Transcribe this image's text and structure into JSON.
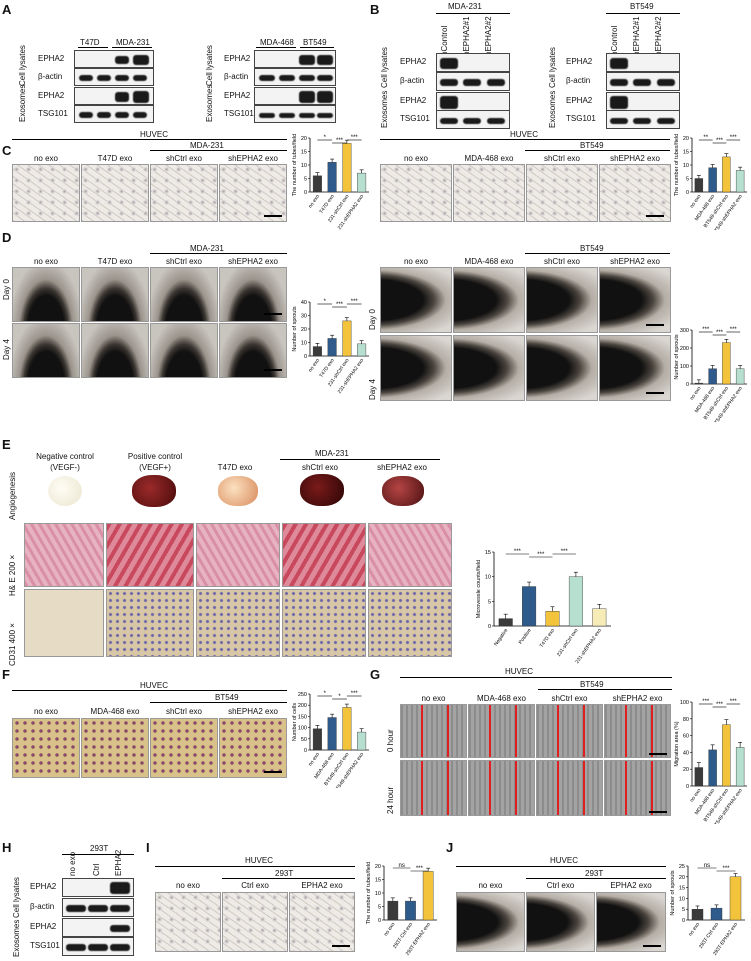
{
  "panels": {
    "A": "A",
    "B": "B",
    "C": "C",
    "D": "D",
    "E": "E",
    "F": "F",
    "G": "G",
    "H": "H",
    "I": "I",
    "J": "J"
  },
  "A": {
    "blot1_cols": [
      "T47D",
      "MDA-231"
    ],
    "blot2_cols": [
      "MDA-468",
      "BT549"
    ],
    "rows": [
      "EPHA2",
      "β-actin",
      "EPHA2",
      "TSG101"
    ],
    "group_cell": "Cell lysates",
    "group_exo": "Exosomes"
  },
  "B": {
    "line1": "MDA-231",
    "line2": "BT549",
    "lanes1": [
      "shControl",
      "shEPHA2#1",
      "shEPHA2#2"
    ],
    "lanes2": [
      "shControl",
      "shEPHA2#1",
      "shEPHA2#2"
    ],
    "rows": [
      "EPHA2",
      "β-actin",
      "EPHA2",
      "TSG101"
    ],
    "group_cell": "Cell lysates",
    "group_exo": "Exosomes"
  },
  "C": {
    "header_left": "HUVEC",
    "cell_left": "MDA-231",
    "cols_left": [
      "no exo",
      "T47D exo",
      "shCtrl exo",
      "shEPHA2 exo"
    ],
    "header_right": "HUVEC",
    "cell_right": "BT549",
    "cols_right": [
      "no exo",
      "MDA-468 exo",
      "shCtrl exo",
      "shEPHA2 exo"
    ]
  },
  "D": {
    "cell_left": "MDA-231",
    "cols_left": [
      "no exo",
      "T47D exo",
      "shCtrl exo",
      "shEPHA2 exo"
    ],
    "cell_right": "BT549",
    "cols_right": [
      "no exo",
      "MDA-468 exo",
      "shCtrl exo",
      "shEPHA2 exo"
    ],
    "rows": [
      "Day 0",
      "Day 4"
    ]
  },
  "E": {
    "cell": "MDA-231",
    "cols": [
      "Negative control",
      "(VEGF-)",
      "Positive control",
      "(VEGF+)",
      "T47D exo",
      "shCtrl exo",
      "shEPHA2 exo"
    ],
    "rows": [
      "Angiogenesis",
      "H& E 200 ×",
      "CD31 400 ×"
    ]
  },
  "F": {
    "header": "HUVEC",
    "cell": "BT549",
    "cols": [
      "no exo",
      "MDA-468 exo",
      "shCtrl exo",
      "shEPHA2 exo"
    ]
  },
  "G": {
    "header": "HUVEC",
    "cell": "BT549",
    "cols": [
      "no exo",
      "MDA-468 exo",
      "shCtrl exo",
      "shEPHA2 exo"
    ],
    "rows": [
      "0 hour",
      "24 hour"
    ]
  },
  "H": {
    "cell": "293T",
    "lanes": [
      "no exo",
      "Ctrl",
      "EPHA2"
    ],
    "rows": [
      "EPHA2",
      "β-actin",
      "EPHA2",
      "TSG101"
    ],
    "group_cell": "Cell lysates",
    "group_exo": "Exosomes"
  },
  "I": {
    "header": "HUVEC",
    "cell": "293T",
    "cols": [
      "no exo",
      "Ctrl exo",
      "EPHA2 exo"
    ]
  },
  "J": {
    "header": "HUVEC",
    "cell": "293T",
    "cols": [
      "no exo",
      "Ctrl exo",
      "EPHA2 exo"
    ]
  },
  "colors": {
    "dark": "#3a3a3a",
    "blue": "#2e5a8c",
    "yellow": "#f3c33c",
    "green": "#b6dfd0",
    "lightyellow": "#f7ecb8"
  },
  "chart_data": [
    {
      "id": "C1",
      "type": "bar",
      "ylabel": "The number of tubes/field",
      "categories": [
        "no exo",
        "T47D exo",
        "231-shCtrl exo",
        "231-shEPHA2 exo"
      ],
      "values": [
        6,
        11,
        18,
        7
      ],
      "ylim": [
        0,
        20
      ],
      "ticks": [
        0,
        5,
        10,
        15,
        20
      ],
      "sig": [
        "*",
        "***",
        "***"
      ]
    },
    {
      "id": "C2",
      "type": "bar",
      "ylabel": "The number of tubes/field",
      "categories": [
        "no exo",
        "MDA-468 exo",
        "BT549-shCtrl exo",
        "BT549-shEPHA2 exo"
      ],
      "values": [
        5,
        9,
        13,
        8
      ],
      "ylim": [
        0,
        20
      ],
      "ticks": [
        0,
        5,
        10,
        15,
        20
      ],
      "sig": [
        "**",
        "***",
        "***"
      ]
    },
    {
      "id": "D1",
      "type": "bar",
      "ylabel": "Number of sprouts",
      "categories": [
        "no exo",
        "T47D exo",
        "231-shCtrl exo",
        "231-shEPHA2 exo"
      ],
      "values": [
        7,
        13,
        26,
        9
      ],
      "ylim": [
        0,
        40
      ],
      "ticks": [
        0,
        10,
        20,
        30,
        40
      ],
      "sig": [
        "*",
        "***",
        "***"
      ]
    },
    {
      "id": "D2",
      "type": "bar",
      "ylabel": "Number of sprouts",
      "categories": [
        "no exo",
        "MDA-468 exo",
        "BT549-shCtrl exo",
        "BT549-shEPHA2 exo"
      ],
      "values": [
        5,
        85,
        230,
        85
      ],
      "ylim": [
        0,
        300
      ],
      "ticks": [
        0,
        100,
        200,
        300
      ],
      "sig": [
        "***",
        "***",
        "***"
      ]
    },
    {
      "id": "E1",
      "type": "bar",
      "ylabel": "Microvessle counts/field",
      "categories": [
        "Negative",
        "Positive",
        "T47D exo",
        "231-shCtrl exo",
        "231-shEPHA2 exo"
      ],
      "values": [
        1.5,
        8,
        3,
        10,
        3.5
      ],
      "ylim": [
        0,
        15
      ],
      "ticks": [
        0,
        5,
        10,
        15
      ],
      "sig": [
        "***",
        "***",
        "***"
      ]
    },
    {
      "id": "F1",
      "type": "bar",
      "ylabel": "Number of cells",
      "categories": [
        "no exo",
        "MDA-468 exo",
        "BT549-shCtrl exo",
        "BT549-shEPHA2 exo"
      ],
      "values": [
        95,
        145,
        190,
        80
      ],
      "ylim": [
        0,
        250
      ],
      "ticks": [
        0,
        50,
        100,
        150,
        200,
        250
      ],
      "sig": [
        "*",
        "*",
        "***"
      ]
    },
    {
      "id": "G1",
      "type": "bar",
      "ylabel": "Migration area (%)",
      "categories": [
        "no exo",
        "MDA-468 exo",
        "BT549-shCtrl exo",
        "BT549-shEPHA2 exo"
      ],
      "values": [
        22,
        43,
        73,
        46
      ],
      "ylim": [
        0,
        100
      ],
      "ticks": [
        0,
        20,
        40,
        60,
        80,
        100
      ],
      "sig": [
        "***",
        "***",
        "***"
      ]
    },
    {
      "id": "I1",
      "type": "bar",
      "ylabel": "The number of tubes/field",
      "categories": [
        "no exo",
        "293T-Ctrl exo",
        "293T-EPHA2 exo"
      ],
      "values": [
        7,
        7,
        18
      ],
      "ylim": [
        0,
        20
      ],
      "ticks": [
        0,
        5,
        10,
        15,
        20
      ],
      "sig": [
        "ns",
        "***"
      ]
    },
    {
      "id": "J1",
      "type": "bar",
      "ylabel": "Number of sprouts",
      "categories": [
        "no exo",
        "293T-Ctrl exo",
        "293T-EPHA2 exo"
      ],
      "values": [
        5,
        5.5,
        20
      ],
      "ylim": [
        0,
        25
      ],
      "ticks": [
        0,
        5,
        10,
        15,
        20,
        25
      ],
      "sig": [
        "ns",
        "***"
      ]
    }
  ]
}
